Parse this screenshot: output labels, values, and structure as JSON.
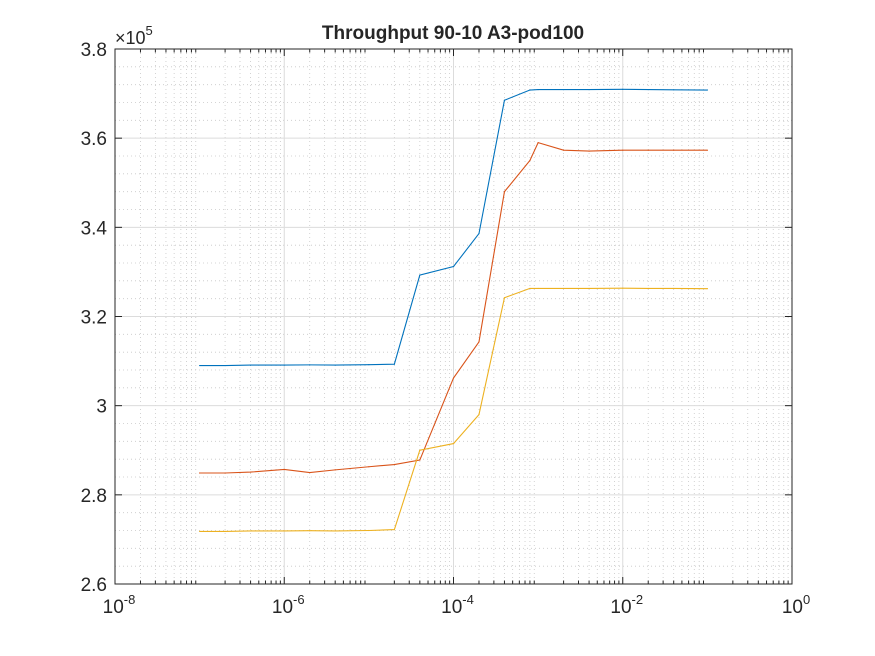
{
  "chart_data": {
    "type": "line",
    "title": "Throughput 90-10 A3-pod100",
    "xlabel": "",
    "ylabel": "",
    "x_scale": "log",
    "xlim": [
      1e-08,
      1
    ],
    "ylim": [
      260000,
      380000
    ],
    "y_multiplier": "×10",
    "y_multiplier_exponent": "5",
    "x_tick_values": [
      1e-08,
      1e-06,
      0.0001,
      0.01,
      1
    ],
    "x_tick_labels": [
      {
        "base": "10",
        "exp": "-8"
      },
      {
        "base": "10",
        "exp": "-6"
      },
      {
        "base": "10",
        "exp": "-4"
      },
      {
        "base": "10",
        "exp": "-2"
      },
      {
        "base": "10",
        "exp": "0"
      }
    ],
    "y_tick_values": [
      260000,
      280000,
      300000,
      320000,
      340000,
      360000,
      380000
    ],
    "y_tick_labels": [
      "2.6",
      "2.8",
      "3",
      "3.2",
      "3.4",
      "3.6",
      "3.8"
    ],
    "grid": true,
    "minor_grid": true,
    "legend": "none",
    "x": [
      1e-07,
      2e-07,
      4e-07,
      1e-06,
      2e-06,
      4e-06,
      1e-05,
      2e-05,
      4e-05,
      0.0001,
      0.0002,
      0.0004,
      0.0008,
      0.001,
      0.002,
      0.004,
      0.01,
      0.02,
      0.04,
      0.1
    ],
    "series": [
      {
        "color": "#0072BD",
        "values": [
          309000,
          309000,
          309100,
          309100,
          309150,
          309100,
          309200,
          309300,
          329300,
          331200,
          338600,
          368500,
          370800,
          370900,
          370900,
          370900,
          370950,
          370900,
          370850,
          370800
        ]
      },
      {
        "color": "#D95319",
        "values": [
          284900,
          284900,
          285100,
          285700,
          285000,
          285600,
          286300,
          286800,
          287800,
          306200,
          314300,
          348000,
          355000,
          359000,
          357300,
          357100,
          357300,
          357300,
          357300,
          357300
        ]
      },
      {
        "color": "#EDB120",
        "values": [
          271800,
          271800,
          271900,
          271900,
          271950,
          271900,
          272000,
          272200,
          290000,
          291500,
          298000,
          324200,
          326300,
          326300,
          326300,
          326300,
          326350,
          326300,
          326300,
          326250
        ]
      }
    ]
  }
}
